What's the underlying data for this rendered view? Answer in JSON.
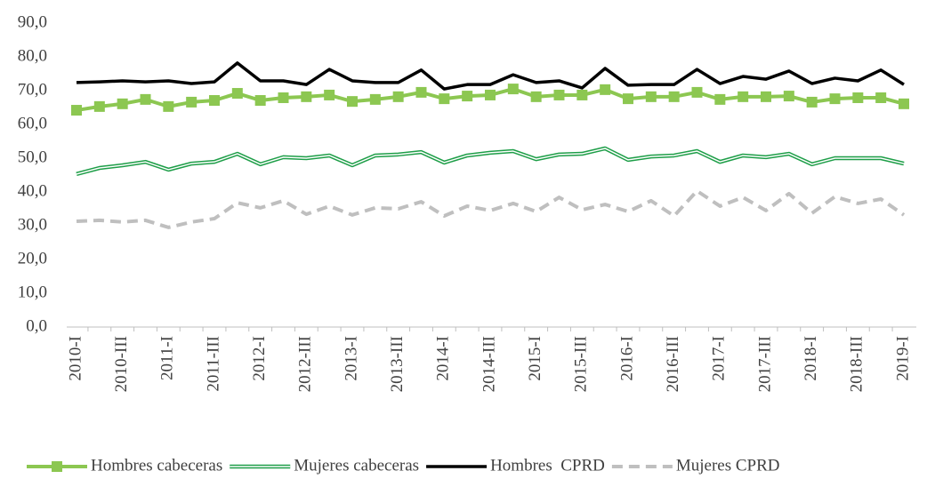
{
  "chart_data": {
    "type": "line",
    "categories": [
      "2010-I",
      null,
      "2010-III",
      null,
      "2011-I",
      null,
      "2011-III",
      null,
      "2012-I",
      null,
      "2012-III",
      null,
      "2013-I",
      null,
      "2013-III",
      null,
      "2014-I",
      null,
      "2014-III",
      null,
      "2015-I",
      null,
      "2015-III",
      null,
      "2016-I",
      null,
      "2016-III",
      null,
      "2017-I",
      null,
      "2017-III",
      null,
      "2018-I",
      null,
      "2018-III",
      null,
      "2019-I"
    ],
    "ylim": [
      0,
      90
    ],
    "yticks": [
      {
        "value": 0,
        "label": "0,0"
      },
      {
        "value": 10,
        "label": "10,0"
      },
      {
        "value": 20,
        "label": "20,0"
      },
      {
        "value": 30,
        "label": "30,0"
      },
      {
        "value": 40,
        "label": "40,0"
      },
      {
        "value": 50,
        "label": "50,0"
      },
      {
        "value": 60,
        "label": "60,0"
      },
      {
        "value": 70,
        "label": "70,0"
      },
      {
        "value": 80,
        "label": "80,0"
      },
      {
        "value": 90,
        "label": "90,0"
      }
    ],
    "legend": "bottom",
    "series": [
      {
        "name": "Hombres cabeceras",
        "color": "#8cc751",
        "line_style": "solid",
        "marker": "square",
        "values": [
          64.2,
          65.3,
          66.1,
          67.4,
          65.3,
          66.6,
          67.1,
          69.2,
          67.1,
          67.9,
          68.2,
          68.7,
          66.8,
          67.4,
          68.2,
          69.5,
          67.6,
          68.4,
          68.7,
          70.5,
          68.2,
          68.7,
          68.7,
          70.3,
          67.6,
          68.2,
          68.2,
          69.5,
          67.4,
          68.2,
          68.2,
          68.4,
          66.6,
          67.6,
          67.9,
          67.9,
          66.1
        ]
      },
      {
        "name": "Mujeres cabeceras",
        "color": "#1e9e48",
        "line_style": "double",
        "values": [
          45.3,
          47.1,
          47.9,
          48.9,
          46.6,
          48.4,
          48.9,
          51.3,
          48.2,
          50.3,
          50.0,
          50.8,
          47.9,
          50.8,
          51.1,
          51.8,
          48.7,
          50.8,
          51.6,
          52.1,
          49.7,
          51.1,
          51.3,
          52.9,
          49.5,
          50.5,
          50.8,
          52.1,
          48.9,
          50.8,
          50.3,
          51.3,
          48.2,
          50.0,
          50.0,
          50.0,
          48.4
        ]
      },
      {
        "name": "Hombres  CPRD",
        "color": "#000000",
        "line_style": "solid",
        "values": [
          72.4,
          72.6,
          72.9,
          72.6,
          72.9,
          72.1,
          72.6,
          78.2,
          72.9,
          72.9,
          71.8,
          76.3,
          72.9,
          72.4,
          72.4,
          76.1,
          70.5,
          71.8,
          71.8,
          74.7,
          72.4,
          72.9,
          70.8,
          76.6,
          71.6,
          71.8,
          71.8,
          76.3,
          72.1,
          74.2,
          73.4,
          75.8,
          72.1,
          73.7,
          72.9,
          76.1,
          71.8
        ]
      },
      {
        "name": "Mujeres CPRD",
        "color": "#bfbfbf",
        "line_style": "dashed",
        "values": [
          31.3,
          31.6,
          31.1,
          31.6,
          29.5,
          31.1,
          32.1,
          36.8,
          35.3,
          37.4,
          33.4,
          35.8,
          33.2,
          35.3,
          35.0,
          37.1,
          32.9,
          35.8,
          34.5,
          36.6,
          34.2,
          38.4,
          34.7,
          36.3,
          34.2,
          37.4,
          32.9,
          40.3,
          35.8,
          38.4,
          34.5,
          39.5,
          33.7,
          38.6,
          36.6,
          37.9,
          33.2
        ]
      }
    ]
  }
}
